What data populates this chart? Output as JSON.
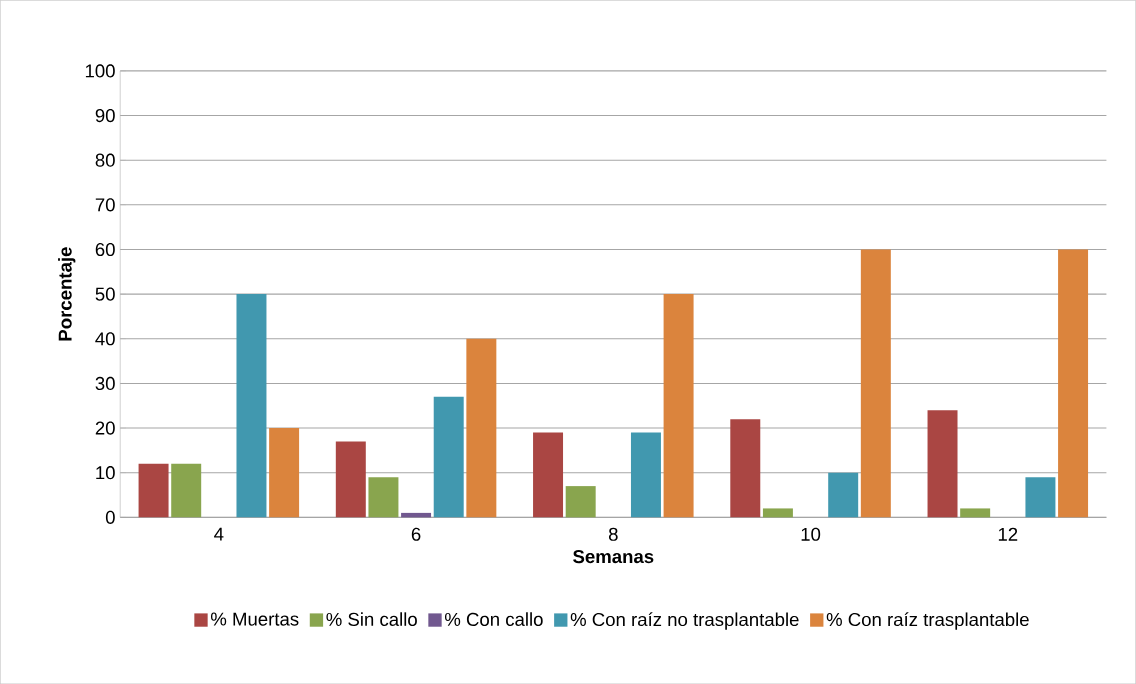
{
  "chart_data": {
    "type": "bar",
    "xlabel": "Semanas",
    "ylabel": "Porcentaje",
    "categories": [
      "4",
      "6",
      "8",
      "10",
      "12"
    ],
    "series": [
      {
        "name": "% Muertas",
        "color": "#aa4643",
        "values": [
          12,
          17,
          19,
          22,
          24
        ]
      },
      {
        "name": "% Sin callo",
        "color": "#89a54e",
        "values": [
          12,
          9,
          7,
          2,
          2
        ]
      },
      {
        "name": "% Con callo",
        "color": "#71588f",
        "values": [
          0,
          1,
          0,
          0,
          0
        ]
      },
      {
        "name": "% Con raíz no trasplantable",
        "color": "#4198af",
        "values": [
          50,
          27,
          19,
          10,
          9
        ]
      },
      {
        "name": "% Con raíz trasplantable",
        "color": "#db843d",
        "values": [
          20,
          40,
          50,
          60,
          60
        ]
      }
    ],
    "ylim": [
      0,
      100
    ],
    "yticks": [
      0,
      10,
      20,
      30,
      40,
      50,
      60,
      70,
      80,
      90,
      100
    ],
    "grid": "y",
    "legend": "bottom"
  }
}
